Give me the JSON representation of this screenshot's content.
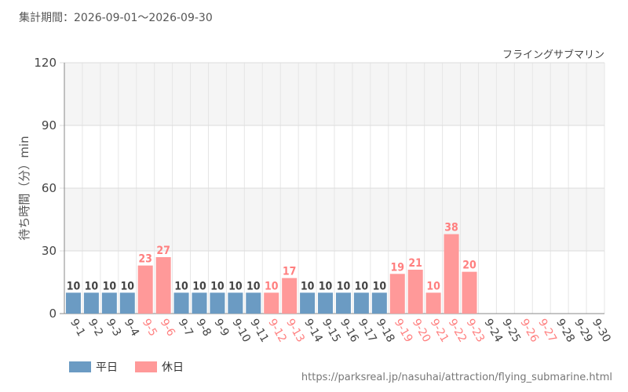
{
  "header": {
    "period_label": "集計期間：2026-09-01～2026-09-30"
  },
  "chart_data": {
    "type": "bar",
    "title": "フライングサブマリン",
    "ylabel": "待ち時間（分）min",
    "xlabel": "",
    "ylim": [
      0,
      120
    ],
    "yticks": [
      0,
      30,
      60,
      90,
      120
    ],
    "grid": true,
    "categories": [
      "9-1",
      "9-2",
      "9-3",
      "9-4",
      "9-5",
      "9-6",
      "9-7",
      "9-8",
      "9-9",
      "9-10",
      "9-11",
      "9-12",
      "9-13",
      "9-14",
      "9-15",
      "9-16",
      "9-17",
      "9-18",
      "9-19",
      "9-20",
      "9-21",
      "9-22",
      "9-23",
      "9-24",
      "9-25",
      "9-26",
      "9-27",
      "9-28",
      "9-29",
      "9-30"
    ],
    "values": [
      10,
      10,
      10,
      10,
      23,
      27,
      10,
      10,
      10,
      10,
      10,
      10,
      17,
      10,
      10,
      10,
      10,
      10,
      19,
      21,
      10,
      38,
      20,
      null,
      null,
      null,
      null,
      null,
      null,
      null
    ],
    "day_types": [
      "weekday",
      "weekday",
      "weekday",
      "weekday",
      "holiday",
      "holiday",
      "weekday",
      "weekday",
      "weekday",
      "weekday",
      "weekday",
      "holiday",
      "holiday",
      "weekday",
      "weekday",
      "weekday",
      "weekday",
      "weekday",
      "holiday",
      "holiday",
      "holiday",
      "holiday",
      "holiday",
      "weekday",
      "weekday",
      "holiday",
      "holiday",
      "weekday",
      "weekday",
      "weekday"
    ],
    "legend": [
      {
        "key": "weekday",
        "label": "平日",
        "color": "#6b9bc3"
      },
      {
        "key": "holiday",
        "label": "休日",
        "color": "#ff9999"
      }
    ],
    "legend_position": "bottom-left"
  },
  "colors": {
    "weekday": "#6b9bc3",
    "holiday": "#ff9999",
    "weekday_text": "#444444",
    "holiday_text": "#ff7f7f",
    "band": "#f5f5f5"
  },
  "footer": {
    "source_url": "https://parksreal.jp/nasuhai/attraction/flying_submarine.html"
  }
}
